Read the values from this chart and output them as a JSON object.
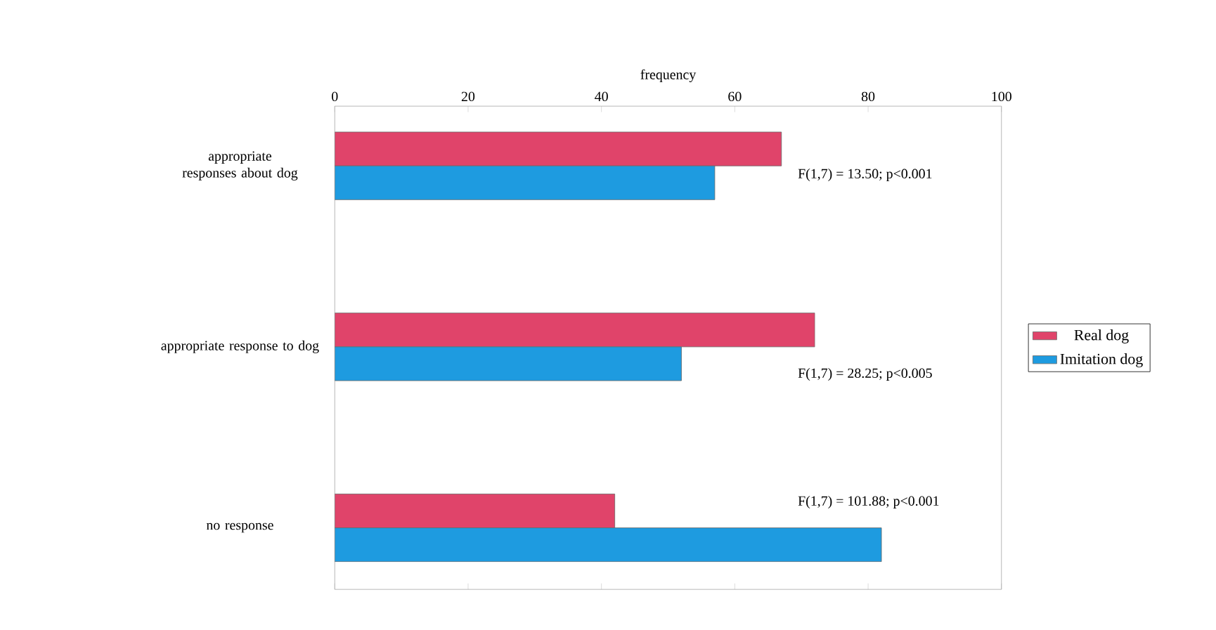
{
  "chart_data": {
    "type": "bar",
    "orientation": "horizontal",
    "xlabel": "frequency",
    "categories": [
      "appropriate responses about dog",
      "appropriate response to dog",
      "no response"
    ],
    "series": [
      {
        "name": "Real dog",
        "color": "#e0446a",
        "values": [
          67,
          72,
          42
        ]
      },
      {
        "name": "Imitation dog",
        "color": "#1e9be0",
        "values": [
          57,
          52,
          82
        ]
      }
    ],
    "xlim": [
      0,
      100
    ],
    "xticks": [
      0,
      20,
      40,
      60,
      80,
      100
    ],
    "grid": false,
    "legend": "right",
    "annotations": [
      "F(1,7) = 13.50; p<0.001",
      "F(1,7) = 28.25; p<0.005",
      "F(1,7) = 101.88; p<0.001"
    ]
  }
}
